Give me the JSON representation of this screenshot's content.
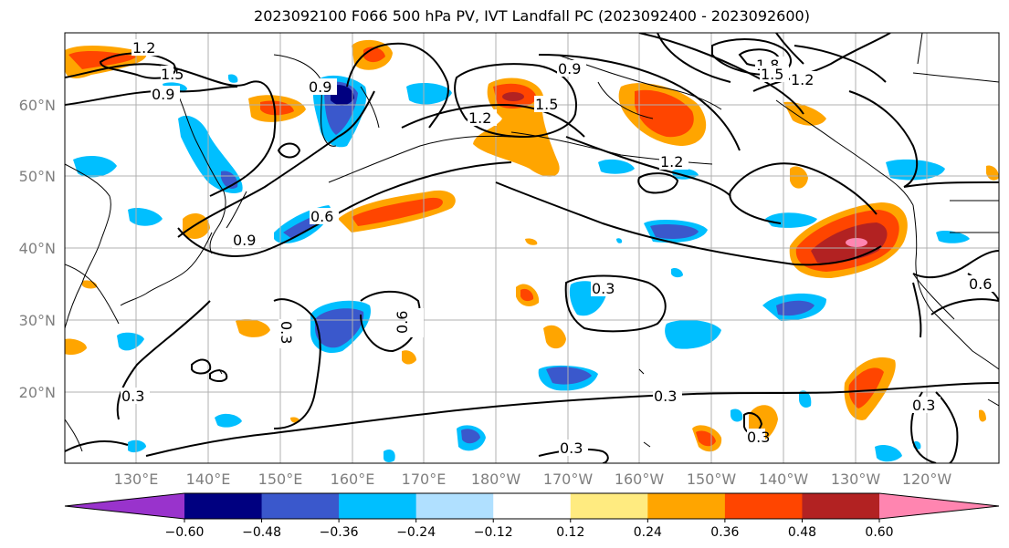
{
  "title": "2023092100 F066 500 hPa PV, IVT Landfall PC (2023092400 - 2023092600)",
  "lat_labels": [
    "20°N",
    "30°N",
    "40°N",
    "50°N",
    "60°N"
  ],
  "lon_labels": [
    "130°E",
    "140°E",
    "150°E",
    "160°E",
    "170°E",
    "180°W",
    "170°W",
    "160°W",
    "150°W",
    "140°W",
    "130°W",
    "120°W"
  ],
  "contour_labels": [
    "1.2",
    "1.5",
    "0.9",
    "0.9",
    "1.8",
    "1.5",
    "1.2",
    "1.2",
    "1.5",
    "0.9",
    "1.2",
    "0.9",
    "0.6",
    "0.3",
    "0.3",
    "0.6",
    "0.3",
    "0.3",
    "0.3",
    "0.3",
    "0.3",
    "0.6"
  ],
  "colorbar": {
    "colors": [
      "#9933cc",
      "#000080",
      "#3a58cc",
      "#00bfff",
      "#b0e0ff",
      "#ffffff",
      "#ffeb80",
      "#ffa500",
      "#ff4500",
      "#b22222",
      "#ff85b0",
      "#ff85b0"
    ],
    "tick_labels": [
      "−0.60",
      "−0.48",
      "−0.36",
      "−0.24",
      "−0.12",
      "0.12",
      "0.24",
      "0.36",
      "0.48",
      "0.60"
    ]
  }
}
